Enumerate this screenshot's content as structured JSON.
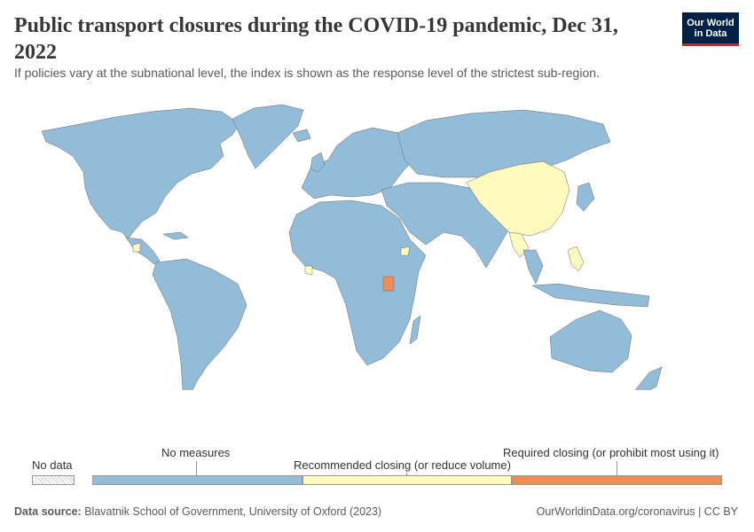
{
  "header": {
    "title": "Public transport closures during the COVID-19 pandemic, Dec 31, 2022",
    "subtitle": "If policies vary at the subnational level, the index is shown as the response level of the strictest sub-region.",
    "logo_line1": "Our World",
    "logo_line2": "in Data"
  },
  "colors": {
    "no_measures": "#93bcd9",
    "recommended": "#fefbbf",
    "required": "#f18c55",
    "background": "#ffffff",
    "border": "#6a6a6a"
  },
  "legend": {
    "no_data": "No data",
    "items": [
      {
        "label": "No measures",
        "color": "#93bcd9"
      },
      {
        "label": "Recommended closing (or reduce volume)",
        "color": "#fefbbf"
      },
      {
        "label": "Required closing (or prohibit most using it)",
        "color": "#f18c55"
      }
    ]
  },
  "map_regions": {
    "no_measures": "Most countries",
    "recommended": [
      "China",
      "Myanmar",
      "Laos",
      "Philippines",
      "Liberia",
      "Honduras",
      "Eritrea"
    ],
    "required": [
      "Uganda"
    ]
  },
  "footer": {
    "source_label": "Data source:",
    "source_text": "Blavatnik School of Government, University of Oxford (2023)",
    "url": "OurWorldinData.org/coronavirus | CC BY"
  }
}
